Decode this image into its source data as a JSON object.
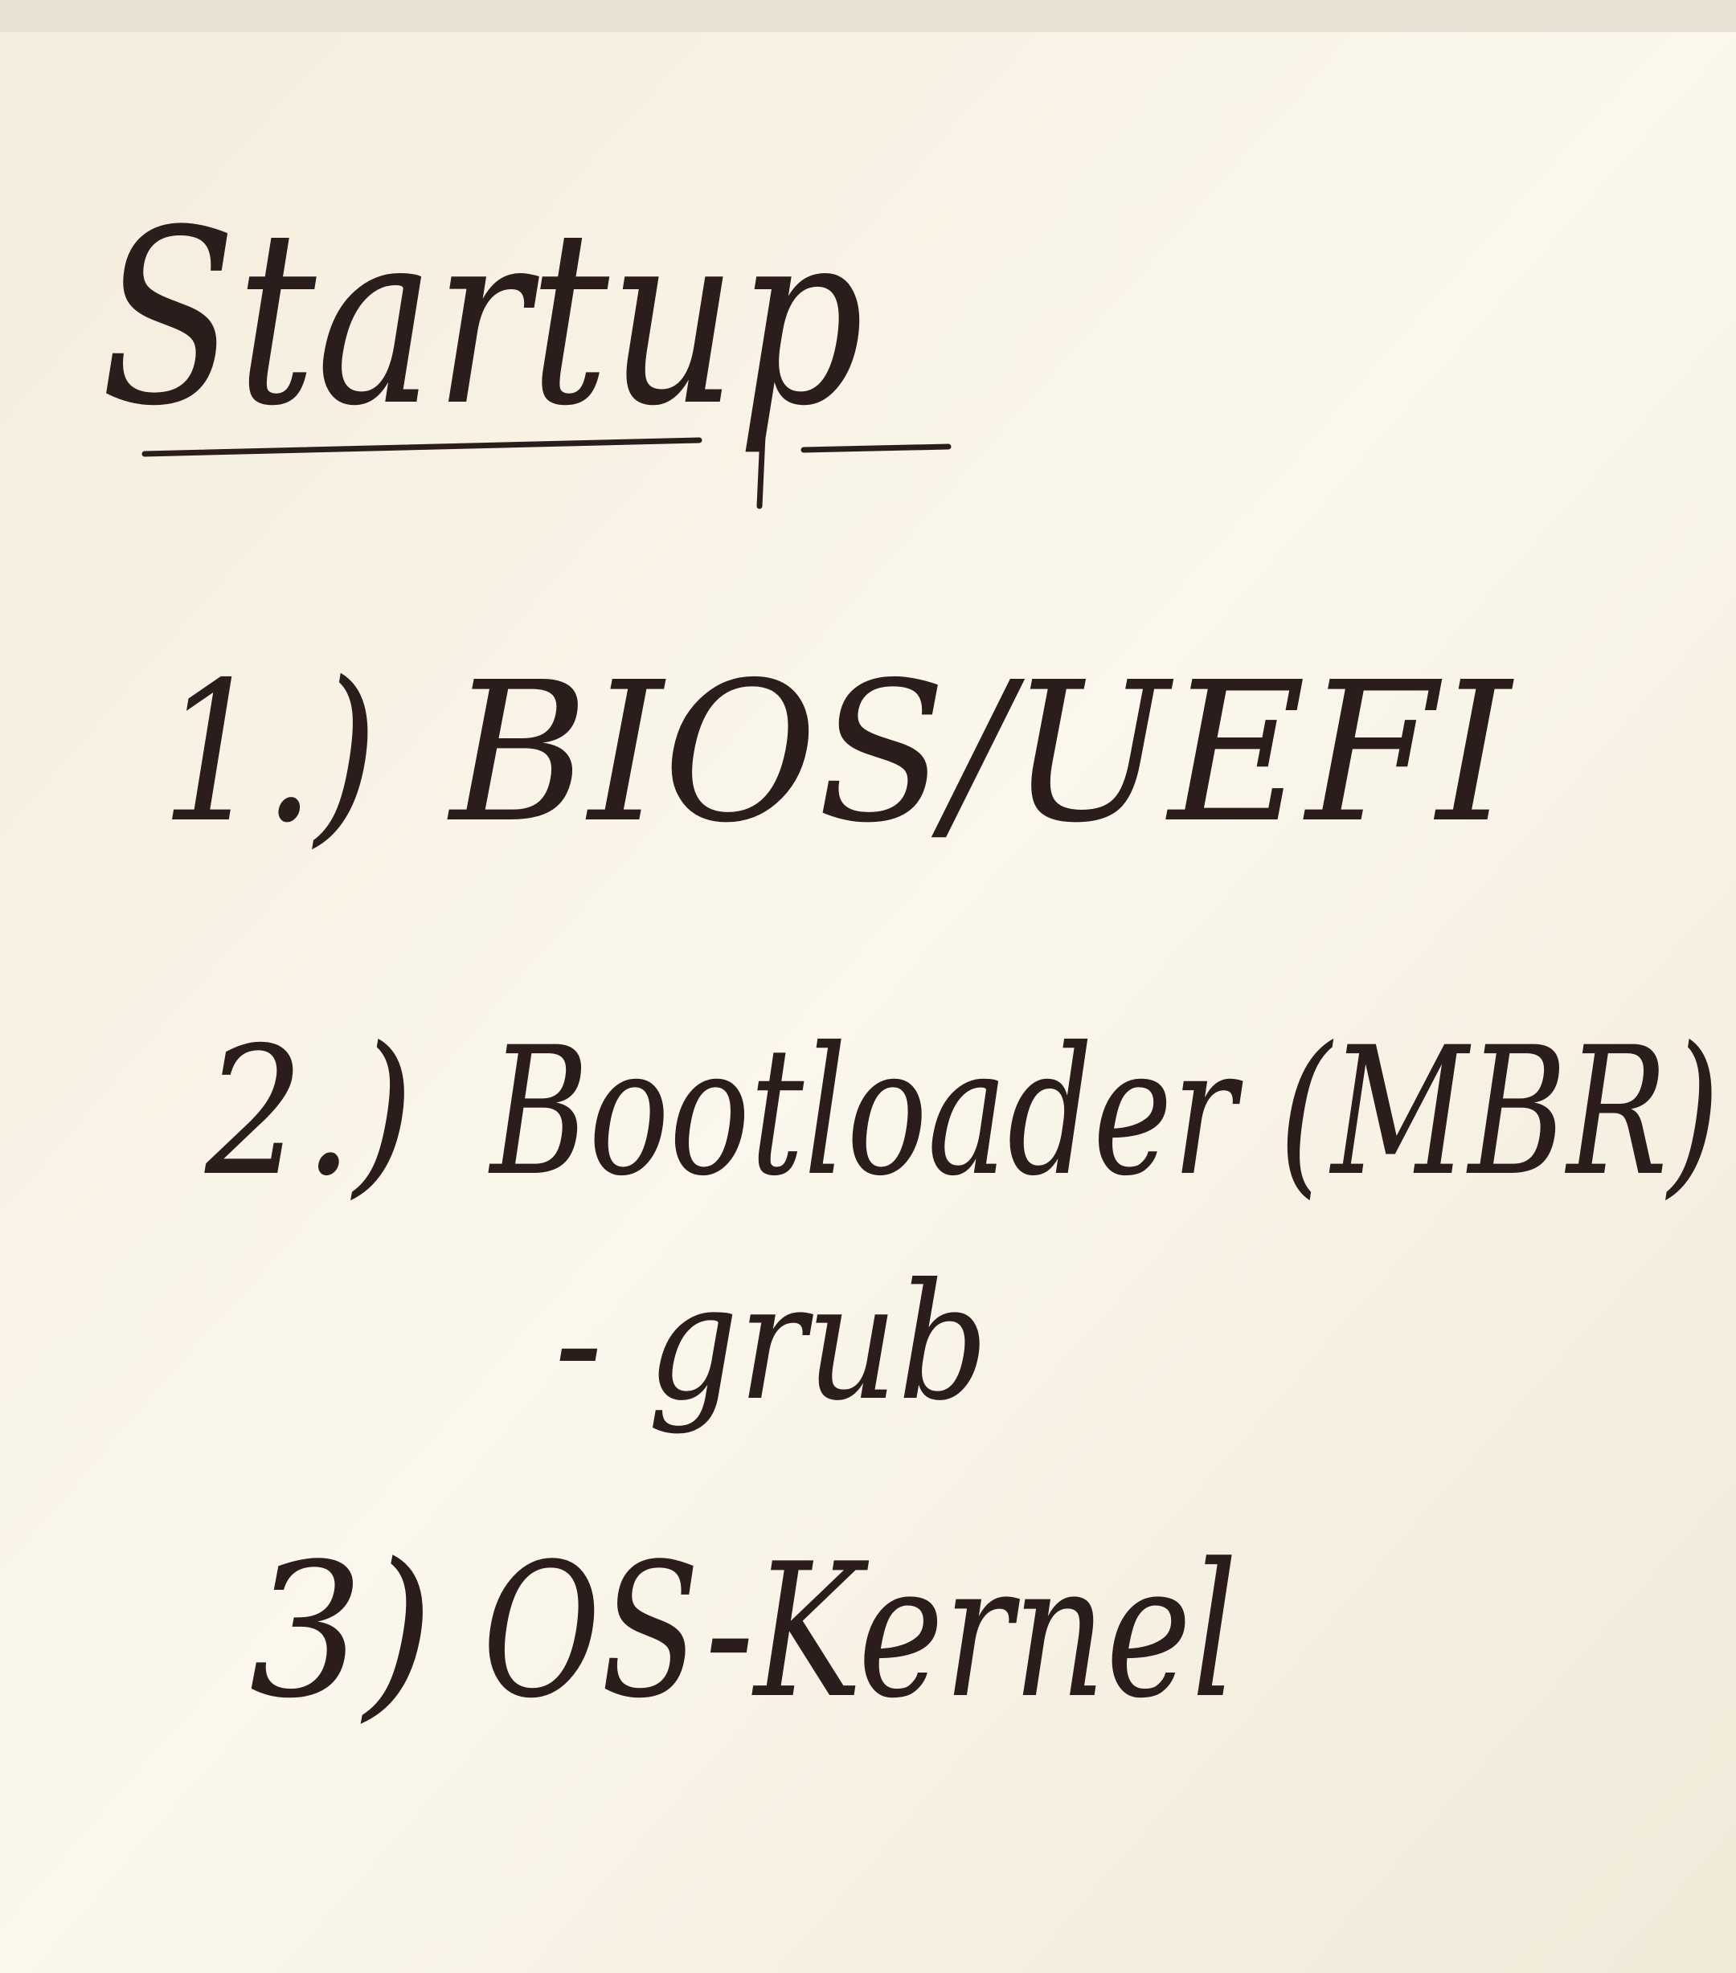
{
  "title": "Startup",
  "items": [
    {
      "marker": "1.)",
      "text": "BIOS/UEFI"
    },
    {
      "marker": "2.)",
      "text": "Bootloader (MBR)",
      "subitems": [
        "- grub"
      ]
    },
    {
      "marker": "3)",
      "text": "OS-Kernel"
    }
  ]
}
